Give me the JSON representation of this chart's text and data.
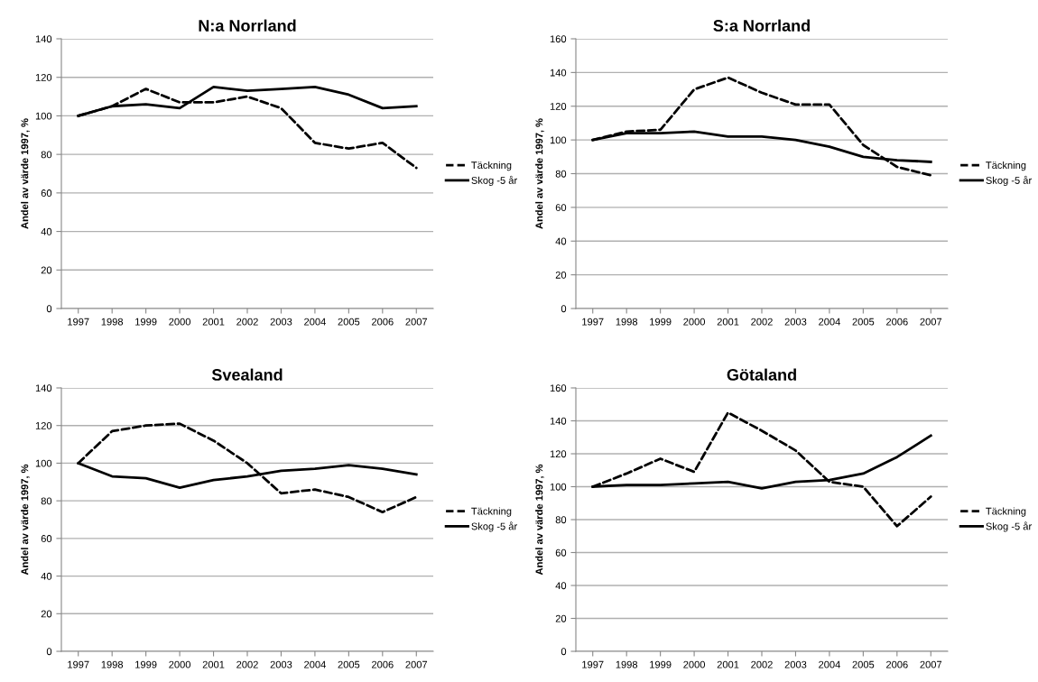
{
  "chart_data": [
    {
      "type": "line",
      "title": "N:a Norrland",
      "ylabel": "Andel av värde 1997, %",
      "categories": [
        "1997",
        "1998",
        "1999",
        "2000",
        "2001",
        "2002",
        "2003",
        "2004",
        "2005",
        "2006",
        "2007"
      ],
      "ylim": [
        0,
        140
      ],
      "yticks": [
        0,
        20,
        40,
        60,
        80,
        100,
        120,
        140
      ],
      "grid": "y",
      "legend": "right",
      "series": [
        {
          "name": "Täckning",
          "color": "#000000",
          "line_style": "dashed",
          "values": [
            100,
            105,
            114,
            107,
            107,
            110,
            104,
            86,
            83,
            86,
            73
          ]
        },
        {
          "name": "Skog -5 år",
          "color": "#000000",
          "line_style": "solid",
          "values": [
            100,
            105,
            106,
            104,
            115,
            113,
            114,
            115,
            111,
            104,
            105
          ]
        }
      ]
    },
    {
      "type": "line",
      "title": "S:a Norrland",
      "ylabel": "Andel av värde 1997, %",
      "categories": [
        "1997",
        "1998",
        "1999",
        "2000",
        "2001",
        "2002",
        "2003",
        "2004",
        "2005",
        "2006",
        "2007"
      ],
      "ylim": [
        0,
        160
      ],
      "yticks": [
        0,
        20,
        40,
        60,
        80,
        100,
        120,
        140,
        160
      ],
      "grid": "y",
      "legend": "right",
      "series": [
        {
          "name": "Täckning",
          "color": "#000000",
          "line_style": "dashed",
          "values": [
            100,
            105,
            106,
            130,
            137,
            128,
            121,
            121,
            97,
            84,
            79
          ]
        },
        {
          "name": "Skog -5 år",
          "color": "#000000",
          "line_style": "solid",
          "values": [
            100,
            104,
            104,
            105,
            102,
            102,
            100,
            96,
            90,
            88,
            87
          ]
        }
      ]
    },
    {
      "type": "line",
      "title": "Svealand",
      "ylabel": "Andel av värde 1997, %",
      "categories": [
        "1997",
        "1998",
        "1999",
        "2000",
        "2001",
        "2002",
        "2003",
        "2004",
        "2005",
        "2006",
        "2007"
      ],
      "ylim": [
        0,
        140
      ],
      "yticks": [
        0,
        20,
        40,
        60,
        80,
        100,
        120,
        140
      ],
      "grid": "y",
      "legend": "right",
      "series": [
        {
          "name": "Täckning",
          "color": "#000000",
          "line_style": "dashed",
          "values": [
            100,
            117,
            120,
            121,
            112,
            100,
            84,
            86,
            82,
            74,
            82
          ]
        },
        {
          "name": "Skog -5 år",
          "color": "#000000",
          "line_style": "solid",
          "values": [
            100,
            93,
            92,
            87,
            91,
            93,
            96,
            97,
            99,
            97,
            94
          ]
        }
      ]
    },
    {
      "type": "line",
      "title": "Götaland",
      "ylabel": "Andel av värde 1997, %",
      "categories": [
        "1997",
        "1998",
        "1999",
        "2000",
        "2001",
        "2002",
        "2003",
        "2004",
        "2005",
        "2006",
        "2007"
      ],
      "ylim": [
        0,
        160
      ],
      "yticks": [
        0,
        20,
        40,
        60,
        80,
        100,
        120,
        140,
        160
      ],
      "grid": "y",
      "legend": "right",
      "series": [
        {
          "name": "Täckning",
          "color": "#000000",
          "line_style": "dashed",
          "values": [
            100,
            108,
            117,
            109,
            145,
            134,
            122,
            103,
            100,
            76,
            94
          ]
        },
        {
          "name": "Skog -5 år",
          "color": "#000000",
          "line_style": "solid",
          "values": [
            100,
            101,
            101,
            102,
            103,
            99,
            103,
            104,
            108,
            118,
            131
          ]
        }
      ]
    }
  ]
}
